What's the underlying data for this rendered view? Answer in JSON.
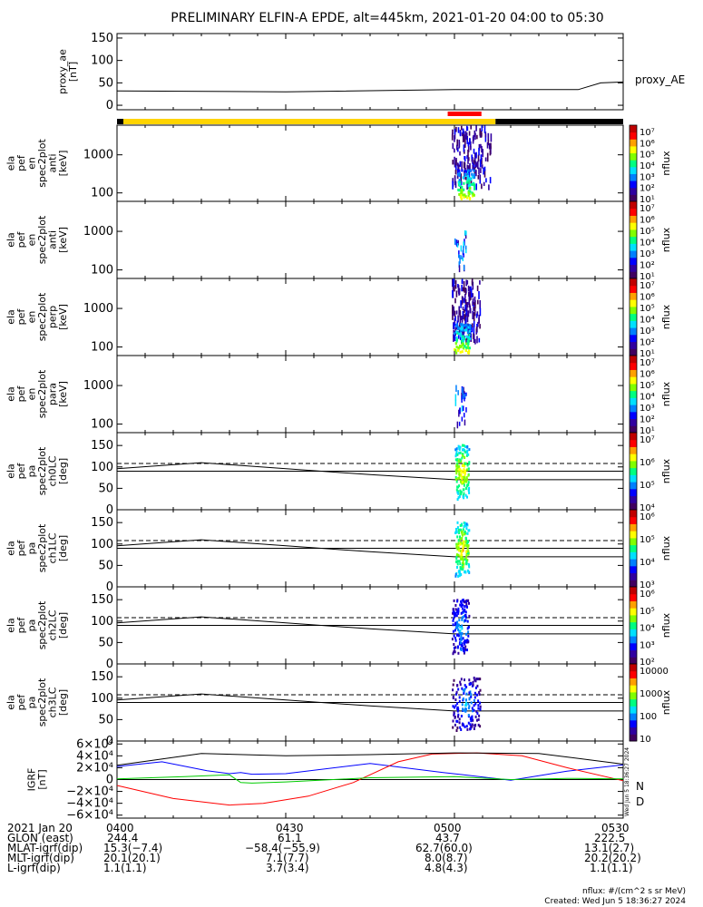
{
  "title": "PRELIMINARY ELFIN-A EPDE, alt=445km, 2021-01-20 04:00 to 05:30",
  "colors": {
    "science_zone_bar": "#ffd400",
    "outside_bar": "#000000",
    "event_marker": "#ff0000",
    "igrf_N": "#0000ff",
    "igrf_D": "#ff0000",
    "igrf_3": "#00cc00",
    "igrf_total": "#000000"
  },
  "colorscale": [
    "#400060",
    "#3000a0",
    "#0000ff",
    "#0080ff",
    "#00e0ff",
    "#00ff80",
    "#80ff00",
    "#ffff00",
    "#ffa000",
    "#ff0000",
    "#c00000"
  ],
  "chart_data": [
    {
      "id": "proxy_ae",
      "type": "line",
      "ylabel": [
        "proxy_ae",
        "[nT]"
      ],
      "yticks": [
        "150",
        "100",
        "50",
        "0"
      ],
      "ylim": [
        -10,
        160
      ],
      "legend": "proxy_AE",
      "x_minutes": [
        0,
        30,
        60,
        82,
        86,
        90
      ],
      "values": [
        32,
        30,
        35,
        35,
        50,
        52
      ]
    },
    {
      "id": "en_anti",
      "type": "heatmap",
      "ylabel": [
        "ela",
        "pef",
        "en",
        "spec2plot",
        "anti",
        "[keV]"
      ],
      "yticks": [
        "1000",
        "100"
      ],
      "ylog": true,
      "ylim": [
        60,
        6000
      ],
      "colorbar": {
        "label": "nflux",
        "ticks": [
          "10⁷",
          "10⁶",
          "10⁵",
          "10⁴",
          "10³",
          "10²",
          "10¹"
        ]
      },
      "activity_minutes": [
        59.5,
        66.5
      ]
    },
    {
      "id": "en_para",
      "type": "heatmap",
      "ylabel": [
        "ela",
        "pef",
        "en",
        "spec2plot",
        "anti",
        "[keV]"
      ],
      "yticks": [
        "1000",
        "100"
      ],
      "ylog": true,
      "ylim": [
        60,
        6000
      ],
      "colorbar": {
        "label": "nflux",
        "ticks": [
          "10⁷",
          "10⁶",
          "10⁵",
          "10⁴",
          "10³",
          "10²",
          "10¹"
        ]
      },
      "activity_minutes": [
        60.0,
        62.0
      ]
    },
    {
      "id": "en_perp",
      "type": "heatmap",
      "ylabel": [
        "ela",
        "pef",
        "en",
        "spec2plot",
        "perp",
        "[keV]"
      ],
      "yticks": [
        "1000",
        "100"
      ],
      "ylog": true,
      "ylim": [
        60,
        6000
      ],
      "colorbar": {
        "label": "nflux",
        "ticks": [
          "10⁷",
          "10⁶",
          "10⁵",
          "10⁴",
          "10³",
          "10²",
          "10¹"
        ]
      },
      "activity_minutes": [
        59.5,
        64.5
      ]
    },
    {
      "id": "en_para2",
      "type": "heatmap",
      "ylabel": [
        "ela",
        "pef",
        "en",
        "spec2plot",
        "para",
        "[keV]"
      ],
      "yticks": [
        "1000",
        "100"
      ],
      "ylog": true,
      "ylim": [
        60,
        6000
      ],
      "colorbar": {
        "label": "nflux",
        "ticks": [
          "10⁷",
          "10⁶",
          "10⁵",
          "10⁴",
          "10³",
          "10²",
          "10¹"
        ]
      },
      "activity_minutes": [
        60.0,
        62.0
      ]
    },
    {
      "id": "pa_ch0",
      "type": "heatmap",
      "ylabel": [
        "ela",
        "pef",
        "pa",
        "spec2plot",
        "ch0LC",
        "[deg]"
      ],
      "yticks": [
        "150",
        "100",
        "50",
        "0"
      ],
      "ylim": [
        0,
        180
      ],
      "colorbar": {
        "label": "nflux",
        "ticks": [
          "10⁷",
          "10⁶",
          "10⁵",
          "10⁴"
        ]
      },
      "activity_minutes": [
        60.0,
        62.5
      ]
    },
    {
      "id": "pa_ch1",
      "type": "heatmap",
      "ylabel": [
        "ela",
        "pef",
        "pa",
        "spec2plot",
        "ch1LC",
        "[deg]"
      ],
      "yticks": [
        "150",
        "100",
        "50",
        "0"
      ],
      "ylim": [
        0,
        180
      ],
      "colorbar": {
        "label": "nflux",
        "ticks": [
          "10⁶",
          "10⁵",
          "10⁴",
          "10³"
        ]
      },
      "activity_minutes": [
        60.0,
        62.5
      ]
    },
    {
      "id": "pa_ch2",
      "type": "heatmap",
      "ylabel": [
        "ela",
        "pef",
        "pa",
        "spec2plot",
        "ch2LC",
        "[deg]"
      ],
      "yticks": [
        "150",
        "100",
        "50",
        "0"
      ],
      "ylim": [
        0,
        180
      ],
      "colorbar": {
        "label": "nflux",
        "ticks": [
          "10⁶",
          "10⁵",
          "10⁴",
          "10³",
          "10²"
        ]
      },
      "activity_minutes": [
        59.5,
        62.5
      ]
    },
    {
      "id": "pa_ch3",
      "type": "heatmap",
      "ylabel": [
        "ela",
        "pef",
        "pa",
        "spec2plot",
        "ch3LC",
        "[deg]"
      ],
      "yticks": [
        "150",
        "100",
        "50",
        "0"
      ],
      "ylim": [
        0,
        180
      ],
      "colorbar": {
        "label": "nflux",
        "ticks": [
          "10000",
          "1000",
          "100",
          "10"
        ]
      },
      "activity_minutes": [
        59.5,
        64.5
      ]
    },
    {
      "id": "igrf",
      "type": "line",
      "ylabel": [
        "IGRF",
        "[nT]"
      ],
      "yticks": [
        "6×10⁴",
        "4×10⁴",
        "2×10⁴",
        "0",
        "−2×10⁴",
        "−4×10⁴",
        "−6×10⁴"
      ],
      "ylim": [
        -65000,
        65000
      ],
      "legend": [
        "N",
        "D"
      ],
      "series": [
        {
          "name": "N",
          "x_minutes": [
            0,
            8,
            16,
            20,
            22,
            24,
            30,
            45,
            58,
            70,
            80,
            90
          ],
          "values": [
            22000,
            30000,
            15000,
            10000,
            12000,
            9000,
            10000,
            27000,
            12000,
            -1000,
            14000,
            25000
          ]
        },
        {
          "name": "D",
          "x_minutes": [
            0,
            10,
            20,
            26,
            34,
            42,
            50,
            56,
            64,
            72,
            80,
            90
          ],
          "values": [
            -10000,
            -32000,
            -43000,
            -40000,
            -28000,
            -5000,
            30000,
            43000,
            45000,
            40000,
            20000,
            -2000
          ]
        },
        {
          "name": "",
          "x_minutes": [
            0,
            12,
            20,
            22,
            24,
            30,
            45,
            60,
            70,
            80,
            90
          ],
          "values": [
            1000,
            5000,
            8000,
            -5000,
            -6000,
            -4000,
            3000,
            5000,
            0,
            2000,
            1000
          ]
        },
        {
          "name": "",
          "x_minutes": [
            0,
            15,
            30,
            45,
            60,
            75,
            90
          ],
          "values": [
            24000,
            44000,
            40000,
            42000,
            45000,
            44000,
            26000
          ]
        }
      ]
    }
  ],
  "reference_lines": {
    "solid_deg": 90,
    "dashed_deg": 108,
    "loss_cone_start_deg": 96,
    "loss_cone_end_deg": 70
  },
  "footer": {
    "labels": [
      "2021 Jan 20",
      "GLON (east)",
      "MLAT-igrf(dip)",
      "MLT-igrf(dip)",
      "L-igrf(dip)"
    ],
    "columns": [
      {
        "time": "0400",
        "vals": [
          "244.4",
          "15.3(−7.4)",
          "20.1(20.1)",
          "1.1(1.1)"
        ]
      },
      {
        "time": "0430",
        "vals": [
          "61.1",
          "−58.4(−55.9)",
          "7.1(7.7)",
          "3.7(3.4)"
        ]
      },
      {
        "time": "0500",
        "vals": [
          "43.7",
          "62.7(60.0)",
          "8.0(8.7)",
          "4.8(4.3)"
        ]
      },
      {
        "time": "0530",
        "vals": [
          "222.5",
          "13.1(2.7)",
          "20.2(20.2)",
          "1.1(1.1)"
        ]
      }
    ],
    "units_note": "nflux: #/(cm^2 s sr MeV)",
    "created": "Created: Wed Jun  5 18:36:27 2024",
    "side_stamp": "Wed Jun  5 18:36:27 2024"
  }
}
